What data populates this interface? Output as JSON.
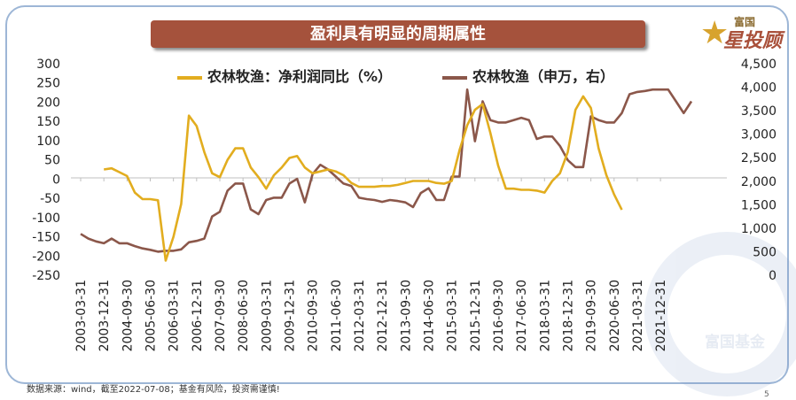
{
  "title": "盈利具有明显的周期属性",
  "logo": {
    "small": "富国",
    "big": "星投顾"
  },
  "watermark": "富国基金",
  "footer": "数据来源：wind，截至2022-07-08；基金有风险，投资需谨慎!",
  "page_number": "5",
  "colors": {
    "series1": "#e2ad1f",
    "series2": "#8b574a",
    "title_bg": "#a5523c"
  },
  "chart_data": {
    "type": "line",
    "title": "盈利具有明显的周期属性",
    "x_tick_labels": [
      "2003-03-31",
      "2003-12-31",
      "2004-09-30",
      "2005-06-30",
      "2006-03-31",
      "2006-12-31",
      "2007-09-30",
      "2008-06-30",
      "2009-03-31",
      "2009-12-31",
      "2010-09-30",
      "2011-06-30",
      "2012-03-31",
      "2012-12-31",
      "2013-09-30",
      "2014-06-30",
      "2015-03-31",
      "2015-12-31",
      "2016-09-30",
      "2017-06-30",
      "2018-03-31",
      "2018-12-31",
      "2019-09-30",
      "2020-06-30",
      "2021-03-31",
      "2021-12-31"
    ],
    "y_left": {
      "ticks": [
        "300",
        "250",
        "200",
        "150",
        "100",
        "50",
        "0",
        "-50",
        "-100",
        "-150",
        "-200",
        "-250"
      ],
      "lim": [
        -250,
        300
      ]
    },
    "y_right": {
      "ticks": [
        "4,500",
        "4,000",
        "3,500",
        "3,000",
        "2,500",
        "2,000",
        "1,500",
        "1,000",
        "500",
        "0"
      ],
      "lim": [
        0,
        4500
      ]
    },
    "legend_position": "top",
    "series": [
      {
        "name": "农林牧渔：净利润同比（%）",
        "axis": "left",
        "start_index": 3,
        "values": [
          25,
          28,
          18,
          8,
          -35,
          -52,
          -52,
          -55,
          -212,
          -150,
          -65,
          165,
          138,
          70,
          15,
          5,
          50,
          80,
          80,
          30,
          5,
          -25,
          10,
          30,
          55,
          60,
          30,
          15,
          20,
          25,
          20,
          10,
          -10,
          -20,
          -20,
          -20,
          -18,
          -18,
          -15,
          -10,
          -5,
          -5,
          -5,
          -10,
          -12,
          -5,
          75,
          140,
          180,
          195,
          120,
          35,
          -25,
          -25,
          -28,
          -28,
          -30,
          -35,
          -5,
          15,
          70,
          180,
          215,
          185,
          80,
          10,
          -40,
          -80
        ]
      },
      {
        "name": "农林牧渔（申万，右）",
        "axis": "right",
        "start_index": 0,
        "values": [
          880,
          780,
          720,
          680,
          780,
          680,
          680,
          620,
          570,
          540,
          500,
          520,
          520,
          550,
          700,
          730,
          780,
          1250,
          1350,
          1800,
          1950,
          1950,
          1400,
          1300,
          1600,
          1650,
          1650,
          1950,
          2050,
          1550,
          2150,
          2350,
          2250,
          2100,
          1950,
          1900,
          1650,
          1620,
          1600,
          1560,
          1600,
          1580,
          1550,
          1450,
          1750,
          1850,
          1600,
          1600,
          2100,
          2100,
          3950,
          2850,
          3700,
          3300,
          3250,
          3250,
          3300,
          3350,
          3300,
          2900,
          2950,
          2950,
          2750,
          2450,
          2300,
          2300,
          3380,
          3300,
          3250,
          3250,
          3450,
          3850,
          3900,
          3920,
          3950,
          3950,
          3950,
          3700,
          3450,
          3700
        ]
      }
    ]
  }
}
